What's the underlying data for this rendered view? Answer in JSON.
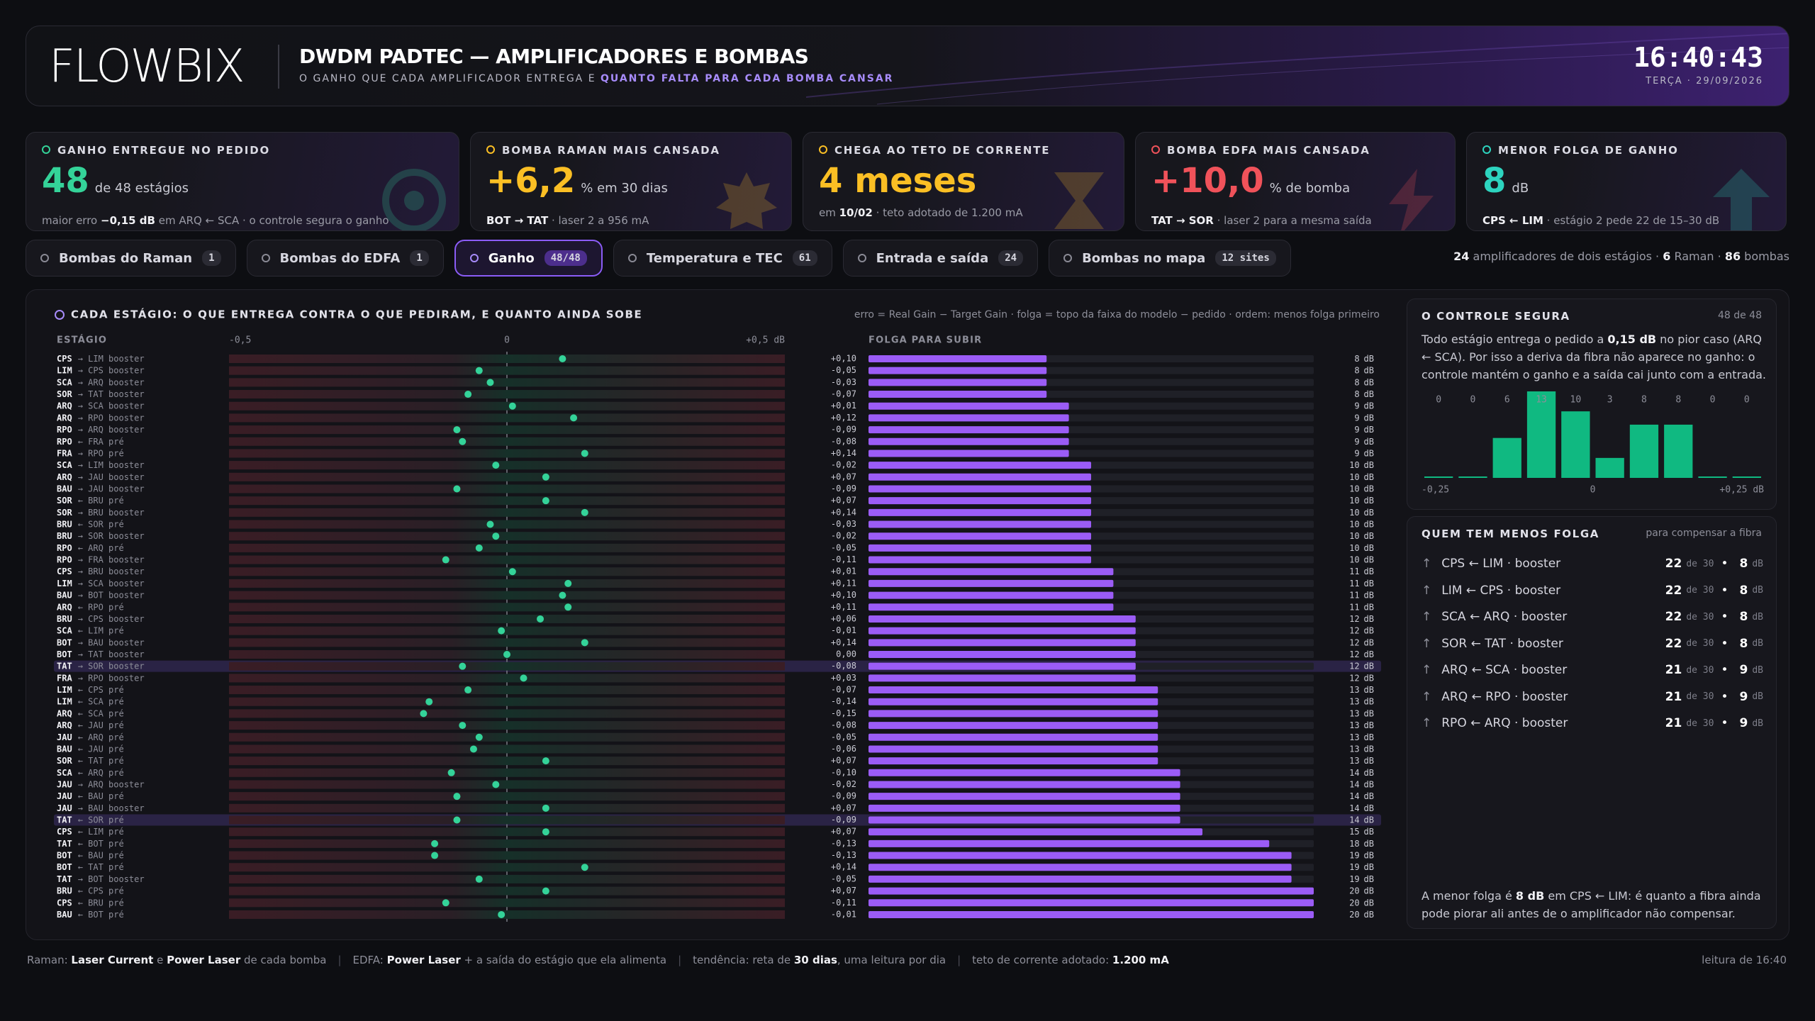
{
  "header": {
    "logo": "FLOWBIX",
    "title": "DWDM PADTEC — AMPLIFICADORES E BOMBAS",
    "subtitle": "O GANHO QUE CADA AMPLIFICADOR ENTREGA E",
    "subtitle_accent": "QUANTO FALTA PARA CADA BOMBA CANSAR",
    "time": "16:40:43",
    "date": "TERÇA · 29/09/2026"
  },
  "kpis": [
    {
      "label": "GANHO ENTREGUE NO PEDIDO",
      "value": "48",
      "unit": "de 48 estágios",
      "color": "#34d399",
      "note": [
        {
          "t": "maior erro "
        },
        {
          "b": "−0,15 dB"
        },
        {
          "t": " em ARQ ← SCA · o controle segura o ganho"
        }
      ]
    },
    {
      "label": "BOMBA RAMAN MAIS CANSADA",
      "value": "+6,2",
      "unit": "% em 30 dias",
      "color": "#fbbf24",
      "note": [
        {
          "b": "BOT → TAT"
        },
        {
          "t": " · laser 2 a 956 mA"
        }
      ]
    },
    {
      "label": "CHEGA AO TETO DE CORRENTE",
      "value": "4 meses",
      "unit": "",
      "color": "#fbbf24",
      "note": [
        {
          "t": "em "
        },
        {
          "b": "10/02"
        },
        {
          "t": " · teto adotado de 1.200 mA"
        }
      ]
    },
    {
      "label": "BOMBA EDFA MAIS CANSADA",
      "value": "+10,0",
      "unit": "% de bomba",
      "color": "#f0525a",
      "note": [
        {
          "b": "TAT → SOR"
        },
        {
          "t": " · laser 2 para a mesma saída"
        }
      ]
    },
    {
      "label": "MENOR FOLGA DE GANHO",
      "value": "8",
      "unit": "dB",
      "color": "#2dd4bf",
      "note": [
        {
          "b": "CPS ← LIM"
        },
        {
          "t": " · estágio 2 pede 22 de 15–30 dB"
        }
      ]
    }
  ],
  "tabs": [
    {
      "label": "Bombas do Raman",
      "badge": "1"
    },
    {
      "label": "Bombas do EDFA",
      "badge": "1"
    },
    {
      "label": "Ganho",
      "badge": "48/48",
      "active": true
    },
    {
      "label": "Temperatura e TEC",
      "badge": "61"
    },
    {
      "label": "Entrada e saída",
      "badge": "24"
    },
    {
      "label": "Bombas no mapa",
      "badge": "12 sites"
    }
  ],
  "summary": [
    {
      "b": "24"
    },
    {
      "t": " amplificadores de dois estágios · "
    },
    {
      "b": "6"
    },
    {
      "t": " Raman · "
    },
    {
      "b": "86"
    },
    {
      "t": " bombas"
    }
  ],
  "chart_data": [
    {
      "type": "dotbar",
      "title": "CADA ESTÁGIO: O QUE ENTREGA CONTRA O QUE PEDIRAM, E QUANTO AINDA SOBE",
      "legend": "erro = Real Gain − Target Gain · folga = topo da faixa do modelo − pedido · ordem: menos folga primeiro",
      "stage_header": "ESTÁGIO",
      "folga_header": "FOLGA PARA SUBIR",
      "xlim": [
        -0.5,
        0.5
      ],
      "xticks": [
        {
          "value": -0.5,
          "label": "-0,5"
        },
        0,
        {
          "value": 0.5,
          "label": "+0,5 dB"
        }
      ],
      "folga_xlim": [
        0,
        20
      ],
      "unit": "dB",
      "dot_color": "#34d399",
      "bar_color": "#9b5cf6",
      "highlight_rows": [
        26,
        39
      ],
      "sites": [
        "CPS",
        "LIM",
        "SCA",
        "SOR",
        "ARQ",
        "ARQ",
        "RPO",
        "RPO",
        "FRA",
        "SCA",
        "ARQ",
        "BAU",
        "SOR",
        "SOR",
        "BRU",
        "BRU",
        "RPO",
        "RPO",
        "CPS",
        "LIM",
        "BAU",
        "ARQ",
        "BRU",
        "SCA",
        "BOT",
        "BOT",
        "TAT",
        "FRA",
        "LIM",
        "LIM",
        "ARQ",
        "ARQ",
        "JAU",
        "BAU",
        "SOR",
        "SCA",
        "JAU",
        "JAU",
        "JAU",
        "TAT",
        "CPS",
        "TAT",
        "BOT",
        "BOT",
        "TAT",
        "BRU",
        "CPS",
        "BAU"
      ],
      "links": [
        "→ LIM booster",
        "→ CPS booster",
        "→ ARQ booster",
        "→ TAT booster",
        "→ SCA booster",
        "→ RPO booster",
        "→ ARQ booster",
        "← FRA pré",
        "→ RPO pré",
        "→ LIM booster",
        "→ JAU booster",
        "→ JAU booster",
        "← BRU pré",
        "→ BRU booster",
        "← SOR pré",
        "→ SOR booster",
        "← ARQ pré",
        "→ FRA booster",
        "→ BRU booster",
        "→ SCA booster",
        "→ BOT booster",
        "← RPO pré",
        "→ CPS booster",
        "← LIM pré",
        "→ BAU booster",
        "→ TAT booster",
        "→ SOR booster",
        "→ RPO booster",
        "← CPS pré",
        "← SCA pré",
        "← SCA pré",
        "← JAU pré",
        "← ARQ pré",
        "← JAU pré",
        "← TAT pré",
        "← ARQ pré",
        "→ ARQ booster",
        "← BAU pré",
        "→ BAU booster",
        "← SOR pré",
        "← LIM pré",
        "← BOT pré",
        "← BAU pré",
        "← TAT pré",
        "→ BOT booster",
        "← CPS pré",
        "← BRU pré",
        "← BOT pré"
      ],
      "values": [
        0.1,
        -0.05,
        -0.03,
        -0.07,
        0.01,
        0.12,
        -0.09,
        -0.08,
        0.14,
        -0.02,
        0.07,
        -0.09,
        0.07,
        0.14,
        -0.03,
        -0.02,
        -0.05,
        -0.11,
        0.01,
        0.11,
        0.1,
        0.11,
        0.06,
        -0.01,
        0.14,
        0.0,
        -0.08,
        0.03,
        -0.07,
        -0.14,
        -0.15,
        -0.08,
        -0.05,
        -0.06,
        0.07,
        -0.1,
        -0.02,
        -0.09,
        0.07,
        -0.09,
        0.07,
        -0.13,
        -0.13,
        0.14,
        -0.05,
        0.07,
        -0.11,
        -0.01
      ],
      "value_labels": [
        "+0,10",
        "-0,05",
        "-0,03",
        "-0,07",
        "+0,01",
        "+0,12",
        "-0,09",
        "-0,08",
        "+0,14",
        "-0,02",
        "+0,07",
        "-0,09",
        "+0,07",
        "+0,14",
        "-0,03",
        "-0,02",
        "-0,05",
        "-0,11",
        "+0,01",
        "+0,11",
        "+0,10",
        "+0,11",
        "+0,06",
        "-0,01",
        "+0,14",
        "0,00",
        "-0,08",
        "+0,03",
        "-0,07",
        "-0,14",
        "-0,15",
        "-0,08",
        "-0,05",
        "-0,06",
        "+0,07",
        "-0,10",
        "-0,02",
        "-0,09",
        "+0,07",
        "-0,09",
        "+0,07",
        "-0,13",
        "-0,13",
        "+0,14",
        "-0,05",
        "+0,07",
        "-0,11",
        "-0,01"
      ],
      "folga": [
        8,
        8,
        8,
        8,
        9,
        9,
        9,
        9,
        9,
        10,
        10,
        10,
        10,
        10,
        10,
        10,
        10,
        10,
        11,
        11,
        11,
        11,
        12,
        12,
        12,
        12,
        12,
        12,
        13,
        13,
        13,
        13,
        13,
        13,
        13,
        14,
        14,
        14,
        14,
        14,
        15,
        18,
        19,
        19,
        19,
        20,
        20,
        20
      ]
    },
    {
      "type": "histogram",
      "bins": [
        -0.25,
        -0.2,
        -0.15,
        -0.1,
        -0.05,
        0,
        0.05,
        0.1,
        0.15,
        0.2,
        0.25
      ],
      "values": [
        0,
        0,
        6,
        13,
        10,
        3,
        8,
        8,
        0,
        0
      ],
      "ylim": [
        0,
        13
      ],
      "color": "#10b981",
      "xticks": [
        {
          "value": -0.25,
          "label": "-0,25"
        },
        0,
        {
          "value": 0.25,
          "label": "+0,25 dB"
        }
      ]
    }
  ],
  "control": {
    "title": "O CONTROLE SEGURA",
    "count": "48 de 48",
    "text": [
      {
        "t": "Todo estágio entrega o pedido a "
      },
      {
        "b": "0,15 dB"
      },
      {
        "t": " no pior caso (ARQ ← SCA). Por isso a deriva da fibra não aparece no ganho: o controle mantém o ganho e a saída cai junto com a entrada."
      }
    ]
  },
  "least": {
    "title": "QUEM TEM MENOS FOLGA",
    "aside": "para compensar a fibra",
    "items": [
      {
        "name": "CPS ← LIM · booster",
        "ask": "22",
        "of": "de 30",
        "folga": "8",
        "unit": "dB"
      },
      {
        "name": "LIM ← CPS · booster",
        "ask": "22",
        "of": "de 30",
        "folga": "8",
        "unit": "dB"
      },
      {
        "name": "SCA ← ARQ · booster",
        "ask": "22",
        "of": "de 30",
        "folga": "8",
        "unit": "dB"
      },
      {
        "name": "SOR ← TAT · booster",
        "ask": "22",
        "of": "de 30",
        "folga": "8",
        "unit": "dB"
      },
      {
        "name": "ARQ ← SCA · booster",
        "ask": "21",
        "of": "de 30",
        "folga": "9",
        "unit": "dB"
      },
      {
        "name": "ARQ ← RPO · booster",
        "ask": "21",
        "of": "de 30",
        "folga": "9",
        "unit": "dB"
      },
      {
        "name": "RPO ← ARQ · booster",
        "ask": "21",
        "of": "de 30",
        "folga": "9",
        "unit": "dB"
      }
    ],
    "note": [
      {
        "t": "A menor folga é "
      },
      {
        "b": "8 dB"
      },
      {
        "t": " em CPS ← LIM: é quanto a fibra ainda pode piorar ali antes de o amplificador não compensar."
      }
    ]
  },
  "footer": {
    "parts": [
      [
        {
          "t": "Raman: "
        },
        {
          "b": "Laser Current"
        },
        {
          "t": " e "
        },
        {
          "b": "Power Laser"
        },
        {
          "t": " de cada bomba"
        }
      ],
      [
        {
          "t": "EDFA: "
        },
        {
          "b": "Power Laser"
        },
        {
          "t": " + a saída do estágio que ela alimenta"
        }
      ],
      [
        {
          "t": "tendência: reta de "
        },
        {
          "b": "30 dias"
        },
        {
          "t": ", uma leitura por dia"
        }
      ],
      [
        {
          "t": "teto de corrente adotado: "
        },
        {
          "b": "1.200 mA"
        }
      ]
    ],
    "right": "leitura de 16:40"
  }
}
